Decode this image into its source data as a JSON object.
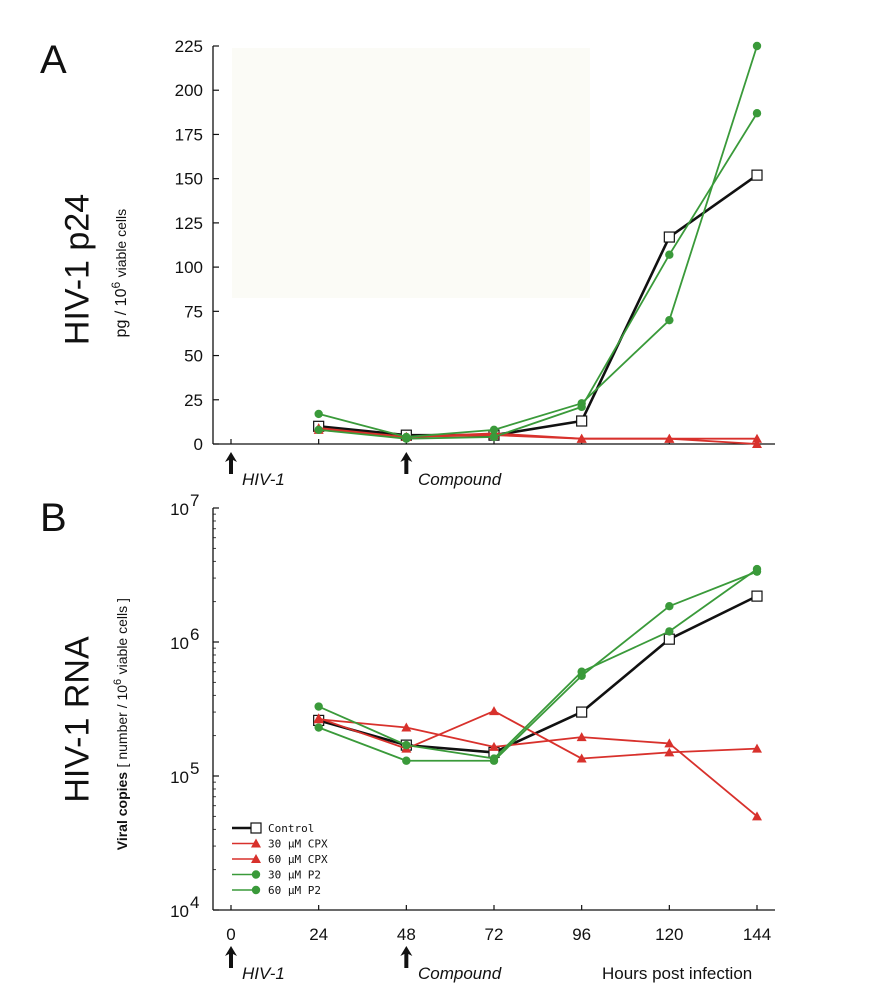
{
  "colors": {
    "control": "#111111",
    "cpx": "#d8312c",
    "p2": "#3a9a3a",
    "axis": "#111111"
  },
  "event_labels": {
    "infection": "HIV-1",
    "compound": "Compound"
  },
  "chart_data": [
    {
      "panel": "A",
      "type": "line",
      "ylabel_main": "HIV-1 p24",
      "ylabel_unit_prefix": "pg / 10",
      "ylabel_unit_exp": "6",
      "ylabel_unit_suffix": "viable cells",
      "ylim": [
        0,
        225
      ],
      "yticks": [
        0,
        25,
        50,
        75,
        100,
        125,
        150,
        175,
        200,
        225
      ],
      "series": [
        {
          "name": "Control",
          "color": "#111111",
          "marker": "open-square",
          "points": [
            [
              24,
              10
            ],
            [
              48,
              5
            ],
            [
              72,
              5
            ],
            [
              96,
              13
            ],
            [
              120,
              117
            ],
            [
              144,
              152
            ]
          ]
        },
        {
          "name": "30 µM CPX",
          "color": "#d8312c",
          "marker": "triangle",
          "points": [
            [
              24,
              9
            ],
            [
              48,
              4
            ],
            [
              72,
              6
            ],
            [
              96,
              3
            ],
            [
              120,
              3
            ],
            [
              144,
              3
            ]
          ]
        },
        {
          "name": "60 µM CPX",
          "color": "#d8312c",
          "marker": "triangle",
          "points": [
            [
              24,
              8
            ],
            [
              48,
              4
            ],
            [
              72,
              5
            ],
            [
              96,
              3
            ],
            [
              120,
              3
            ],
            [
              144,
              0
            ]
          ]
        },
        {
          "name": "30 µM P2",
          "color": "#3a9a3a",
          "marker": "circle",
          "points": [
            [
              24,
              17
            ],
            [
              48,
              4
            ],
            [
              72,
              8
            ],
            [
              96,
              23
            ],
            [
              120,
              70
            ],
            [
              144,
              225
            ]
          ]
        },
        {
          "name": "60 µM P2",
          "color": "#3a9a3a",
          "marker": "circle",
          "points": [
            [
              24,
              8
            ],
            [
              48,
              3
            ],
            [
              72,
              4
            ],
            [
              96,
              21
            ],
            [
              120,
              107
            ],
            [
              144,
              187
            ]
          ]
        }
      ]
    },
    {
      "panel": "B",
      "type": "line",
      "scale": "log",
      "ylabel_main": "HIV-1 RNA",
      "ylabel_unit_bold": "Viral copies",
      "ylabel_unit_prefix": "[ number / 10",
      "ylabel_unit_exp": "6",
      "ylabel_unit_suffix": "viable cells ]",
      "ylim": [
        10000,
        10000000
      ],
      "yticks": [
        {
          "value": 10000,
          "base": "10",
          "exp": "4"
        },
        {
          "value": 100000,
          "base": "10",
          "exp": "5"
        },
        {
          "value": 1000000,
          "base": "10",
          "exp": "6"
        },
        {
          "value": 10000000,
          "base": "10",
          "exp": "7"
        }
      ],
      "xticks": [
        0,
        24,
        48,
        72,
        96,
        120,
        144
      ],
      "xlabel": "Hours post infection",
      "legend_position": "bottom-left",
      "series": [
        {
          "name": "Control",
          "color": "#111111",
          "marker": "open-square",
          "points": [
            [
              24,
              260000
            ],
            [
              48,
              170000
            ],
            [
              72,
              150000
            ],
            [
              96,
              300000
            ],
            [
              120,
              1050000
            ],
            [
              144,
              2200000
            ]
          ]
        },
        {
          "name": "30 µM CPX",
          "color": "#d8312c",
          "marker": "triangle",
          "points": [
            [
              24,
              265000
            ],
            [
              48,
              230000
            ],
            [
              72,
              165000
            ],
            [
              96,
              195000
            ],
            [
              120,
              175000
            ],
            [
              144,
              50000
            ]
          ]
        },
        {
          "name": "60 µM CPX",
          "color": "#d8312c",
          "marker": "triangle",
          "points": [
            [
              24,
              270000
            ],
            [
              48,
              160000
            ],
            [
              72,
              305000
            ],
            [
              96,
              135000
            ],
            [
              120,
              150000
            ],
            [
              144,
              160000
            ]
          ]
        },
        {
          "name": "30 µM P2",
          "color": "#3a9a3a",
          "marker": "circle",
          "points": [
            [
              24,
              230000
            ],
            [
              48,
              130000
            ],
            [
              72,
              130000
            ],
            [
              96,
              560000
            ],
            [
              120,
              1850000
            ],
            [
              144,
              3350000
            ]
          ]
        },
        {
          "name": "60 µM P2",
          "color": "#3a9a3a",
          "marker": "circle",
          "points": [
            [
              24,
              330000
            ],
            [
              48,
              170000
            ],
            [
              72,
              135000
            ],
            [
              96,
              600000
            ],
            [
              120,
              1200000
            ],
            [
              144,
              3500000
            ]
          ]
        }
      ]
    }
  ]
}
